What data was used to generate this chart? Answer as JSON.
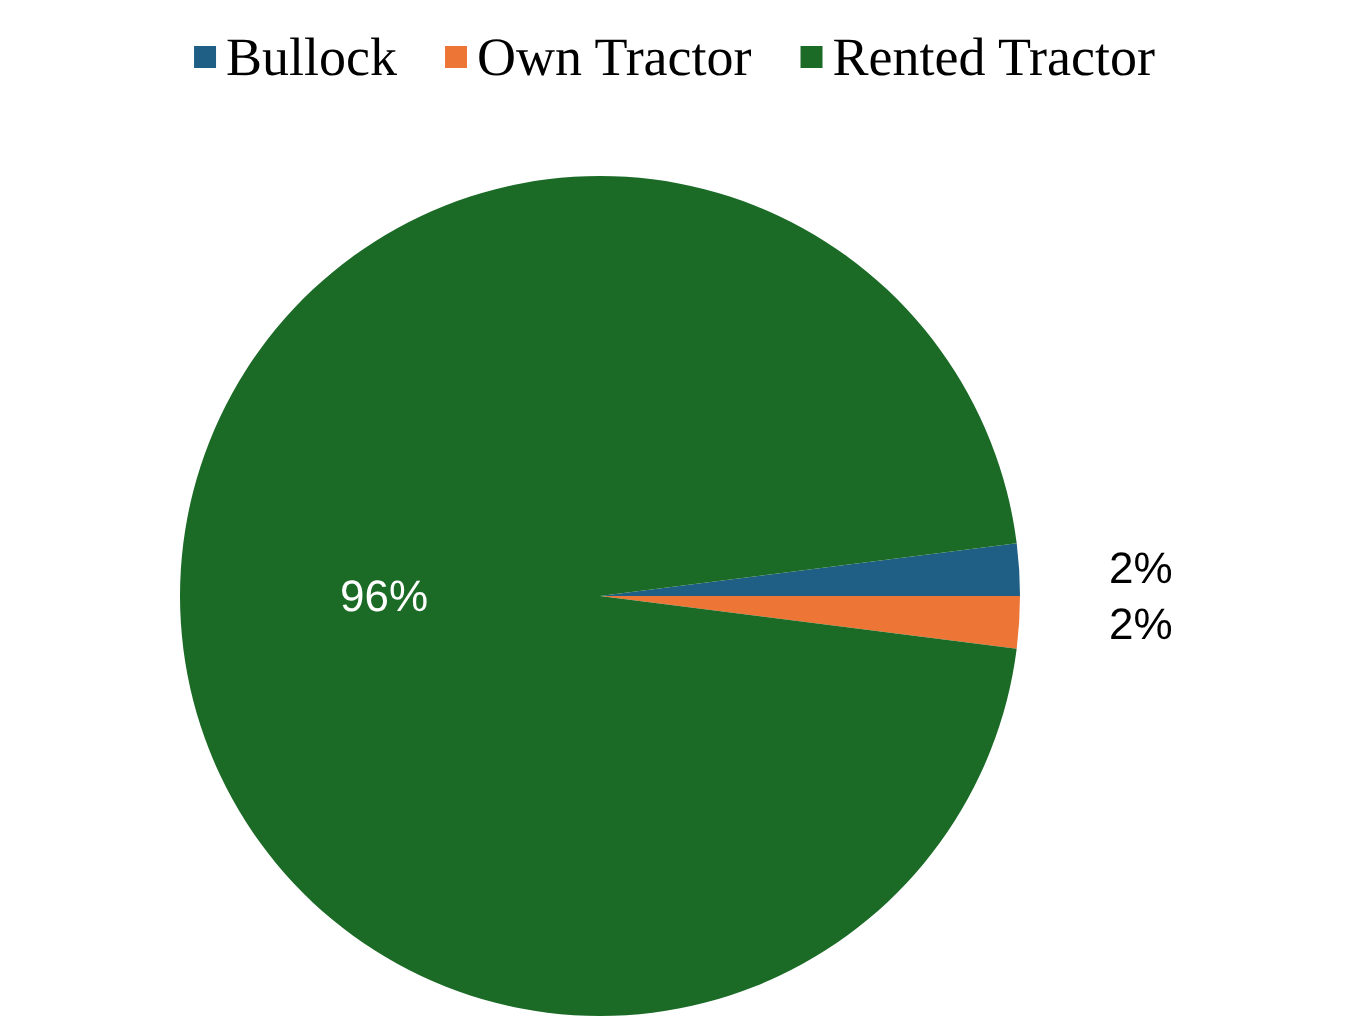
{
  "chart_data": {
    "type": "pie",
    "categories": [
      "Bullock",
      "Own Tractor",
      "Rented Tractor"
    ],
    "values": [
      2,
      2,
      96
    ],
    "colors": [
      "#1f5f86",
      "#ed7536",
      "#1b6b27"
    ],
    "value_labels": [
      "2%",
      "2%",
      "96%"
    ],
    "legend": "top"
  }
}
